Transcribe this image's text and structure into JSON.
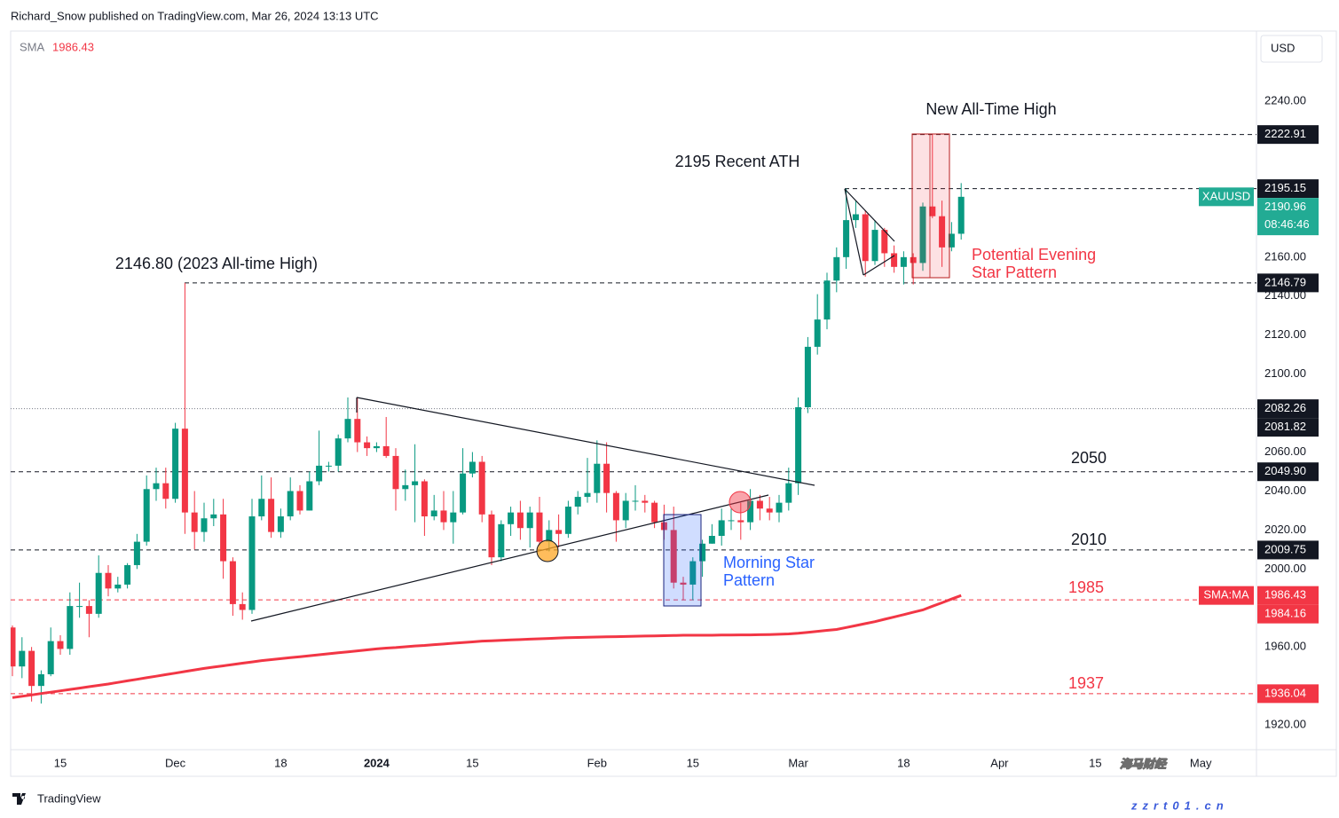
{
  "header": {
    "byline": "Richard_Snow published on TradingView.com, Mar 26, 2024 13:13 UTC",
    "currency": "USD",
    "brand": "TradingView",
    "watermark": "海马财经",
    "watermark_url": "zzrt01.cn"
  },
  "chart_data": {
    "type": "candlestick",
    "up_color": "#089981",
    "down_color": "#f23645",
    "categories": [
      null,
      null,
      null,
      null,
      null,
      "15",
      null,
      null,
      null,
      null,
      null,
      null,
      null,
      null,
      null,
      null,
      null,
      "Dec",
      null,
      null,
      null,
      null,
      null,
      null,
      null,
      null,
      null,
      null,
      "18",
      null,
      null,
      null,
      null,
      null,
      null,
      null,
      null,
      null,
      "2024",
      null,
      null,
      null,
      null,
      null,
      null,
      null,
      null,
      null,
      "15",
      null,
      null,
      null,
      null,
      null,
      null,
      null,
      null,
      null,
      null,
      null,
      null,
      "Feb",
      null,
      null,
      null,
      null,
      null,
      null,
      null,
      null,
      null,
      "15",
      null,
      null,
      null,
      null,
      null,
      null,
      null,
      null,
      null,
      null,
      "Mar",
      null,
      null,
      null,
      null,
      null,
      null,
      null,
      null,
      null,
      null,
      "18",
      null,
      null,
      null,
      null,
      null,
      null,
      null,
      null,
      null,
      "Apr",
      null,
      null,
      null,
      null,
      null,
      null,
      null,
      null,
      null,
      "15",
      null,
      null,
      null,
      null,
      null,
      null,
      null,
      null,
      null,
      null,
      "May"
    ],
    "open": [
      1970,
      1950,
      1958,
      1940,
      1946,
      1963,
      1959,
      1981,
      1981,
      1977,
      1998,
      1990,
      1992,
      2002,
      2014,
      2041,
      2044,
      2036,
      2072,
      2029,
      2019,
      2026,
      2028,
      2004,
      1982,
      1979,
      2027,
      2036,
      2019,
      2027,
      2040,
      2030,
      2045,
      2053,
      2053,
      2067,
      2077,
      2065,
      2062,
      2063,
      2058,
      2041,
      2043,
      2045,
      2027,
      2030,
      2024,
      2029,
      2049,
      2055,
      2028,
      2006,
      2023,
      2029,
      2021,
      2029,
      2014,
      2020,
      2018,
      2032,
      2037,
      2039,
      2054,
      2039,
      2025,
      2035,
      2035,
      2034,
      2024,
      2020,
      1993,
      1992,
      2004,
      2013,
      2017,
      2025,
      2025,
      2024,
      2035,
      2031,
      2029,
      2034,
      2044,
      2083,
      2114,
      2128,
      2148,
      2160,
      2179,
      2182,
      2158,
      2174,
      2162,
      2155,
      2160,
      2157,
      2186,
      2181,
      2165,
      2172,
      null,
      null,
      null,
      null,
      null,
      null,
      null,
      null,
      null,
      null,
      null,
      null,
      null,
      null,
      null,
      null,
      null,
      null,
      null,
      null,
      null,
      null,
      null,
      null,
      null
    ],
    "high": [
      1971,
      1965,
      1960,
      1948,
      1970,
      1966,
      1988,
      1993,
      1984,
      2007,
      2002,
      1996,
      2003,
      2018,
      2048,
      2052,
      2052,
      2075,
      2146.8,
      2040,
      2034,
      2036,
      2036,
      2006,
      1988,
      2036,
      2048,
      2047,
      2031,
      2047,
      2043,
      2050,
      2071,
      2055,
      2069,
      2088,
      2088,
      2068,
      2065,
      2078,
      2062,
      2051,
      2064,
      2046,
      2038,
      2040,
      2040,
      2062,
      2060,
      2058,
      2030,
      2025,
      2032,
      2035,
      2032,
      2037,
      2025,
      2028,
      2035,
      2040,
      2057,
      2066,
      2065,
      2040,
      2039,
      2043,
      2038,
      2035,
      2033,
      2032,
      1996,
      2006,
      2015,
      2023,
      2031,
      2031,
      2034,
      2041,
      2038,
      2037,
      2038,
      2052,
      2088,
      2119,
      2141,
      2152,
      2165,
      2195.15,
      2189,
      2184,
      2179,
      2175,
      2166,
      2163,
      2162,
      2188,
      2222.91,
      2189,
      2178,
      2198,
      null,
      null,
      null,
      null,
      null,
      null,
      null,
      null,
      null,
      null,
      null,
      null,
      null,
      null,
      null,
      null,
      null,
      null,
      null,
      null,
      null,
      null,
      null,
      null,
      null
    ],
    "low": [
      1945,
      1944,
      1932,
      1931,
      1945,
      1956,
      1956,
      1975,
      1965,
      1975,
      1986,
      1988,
      1990,
      2000,
      2012,
      2035,
      2031,
      2034,
      2018,
      2010,
      2014,
      2022,
      1995,
      1976,
      1974,
      1977,
      2025,
      2016,
      2016,
      2025,
      2028,
      2030,
      2043,
      2050,
      2050,
      2065,
      2060,
      2058,
      2060,
      2057,
      2030,
      2035,
      2024,
      2017,
      2025,
      2020,
      2013,
      2028,
      2047,
      2024,
      2002,
      2004,
      2017,
      2015,
      2011,
      2012,
      2009,
      2011,
      2016,
      2028,
      2034,
      2034,
      2029,
      2014,
      2021,
      2030,
      2029,
      2021,
      2015,
      1990,
      1984,
      1984,
      1996,
      2013,
      2012,
      2020,
      2015,
      2020,
      2025,
      2025,
      2024,
      2030,
      2038,
      2080,
      2110,
      2123,
      2142,
      2154,
      2175,
      2150,
      2156,
      2155,
      2152,
      2146,
      2146,
      2153,
      2180,
      2155,
      2163,
      2169,
      null,
      null,
      null,
      null,
      null,
      null,
      null,
      null,
      null,
      null,
      null,
      null,
      null,
      null,
      null,
      null,
      null,
      null,
      null,
      null,
      null,
      null,
      null,
      null,
      null
    ],
    "close": [
      1950,
      1958,
      1940,
      1946,
      1963,
      1959,
      1981,
      1981,
      1977,
      1998,
      1990,
      1992,
      2002,
      2014,
      2041,
      2044,
      2036,
      2072,
      2029,
      2019,
      2026,
      2028,
      2004,
      1982,
      1979,
      2027,
      2036,
      2019,
      2027,
      2040,
      2030,
      2045,
      2053,
      2053,
      2067,
      2077,
      2065,
      2062,
      2063,
      2058,
      2041,
      2043,
      2045,
      2027,
      2030,
      2024,
      2029,
      2049,
      2055,
      2028,
      2006,
      2023,
      2029,
      2021,
      2029,
      2014,
      2020,
      2018,
      2032,
      2037,
      2039,
      2054,
      2039,
      2025,
      2035,
      2035,
      2034,
      2024,
      2020,
      1993,
      1992,
      2004,
      2013,
      2017,
      2025,
      2025,
      2024,
      2035,
      2031,
      2029,
      2034,
      2044,
      2083,
      2114,
      2128,
      2148,
      2160,
      2179,
      2182,
      2158,
      2174,
      2162,
      2155,
      2160,
      2157,
      2186,
      2181,
      2165,
      2172,
      2190.96,
      null,
      null,
      null,
      null,
      null,
      null,
      null,
      null,
      null,
      null,
      null,
      null,
      null,
      null,
      null,
      null,
      null,
      null,
      null,
      null,
      null,
      null,
      null,
      null,
      null
    ],
    "sma": {
      "name": "SMA",
      "tag": "SMA:MA",
      "value": 1986.43,
      "color": "#f23645",
      "values": [
        1934,
        1934.7,
        1935.4,
        1936.1,
        1936.8,
        1937.5,
        1938.2,
        1938.9,
        1939.6,
        1940.3,
        1941,
        1941.8,
        1942.6,
        1943.4,
        1944.2,
        1945,
        1945.8,
        1946.6,
        1947.4,
        1948.2,
        1949,
        1949.7,
        1950.3,
        1951,
        1951.7,
        1952.3,
        1953,
        1953.5,
        1954,
        1954.5,
        1955,
        1955.5,
        1956,
        1956.5,
        1957,
        1957.5,
        1958,
        1958.5,
        1959,
        1959.4,
        1959.7,
        1960.1,
        1960.5,
        1960.8,
        1961.2,
        1961.5,
        1961.9,
        1962.3,
        1962.6,
        1963,
        1963.2,
        1963.4,
        1963.6,
        1963.8,
        1964,
        1964.2,
        1964.4,
        1964.6,
        1964.8,
        1964.9,
        1965,
        1965.1,
        1965.2,
        1965.3,
        1965.4,
        1965.5,
        1965.6,
        1965.7,
        1965.8,
        1965.9,
        1966,
        1966,
        1966,
        1966,
        1966.1,
        1966.1,
        1966.2,
        1966.2,
        1966.3,
        1966.4,
        1966.5,
        1966.7,
        1967,
        1967.5,
        1968,
        1968.5,
        1969,
        1970,
        1971,
        1972,
        1973,
        1974.2,
        1975.4,
        1976.6,
        1977.8,
        1979,
        1980.9,
        1982.7,
        1984.6,
        1986.43,
        null,
        null,
        null,
        null,
        null,
        null,
        null,
        null,
        null,
        null,
        null,
        null,
        null,
        null,
        null,
        null,
        null,
        null,
        null,
        null,
        null,
        null,
        null,
        null,
        null
      ]
    },
    "last_price": {
      "symbol": "XAUUSD",
      "value": 2190.96,
      "label": "2190.96",
      "countdown": "08:46:46",
      "color": "#22ab94"
    },
    "ylim": [
      1907.3,
      2276
    ],
    "yticks": [
      {
        "value": 2240,
        "label": "2240.00"
      },
      {
        "value": 2160,
        "label": "2160.00"
      },
      {
        "value": 2140,
        "label": "2140.00"
      },
      {
        "value": 2120,
        "label": "2120.00"
      },
      {
        "value": 2100,
        "label": "2100.00"
      },
      {
        "value": 2060,
        "label": "2060.00"
      },
      {
        "value": 2040,
        "label": "2040.00"
      },
      {
        "value": 2020,
        "label": "2020.00"
      },
      {
        "value": 2000,
        "label": "2000.00"
      },
      {
        "value": 1960,
        "label": "1960.00"
      },
      {
        "value": 1920,
        "label": "1920.00"
      }
    ],
    "levels": [
      {
        "value": 2222.91,
        "label": "2222.91",
        "color": "#131722",
        "line": "dashed"
      },
      {
        "value": 2195.15,
        "label": "2195.15",
        "color": "#131722",
        "line": "dashed"
      },
      {
        "value": 2146.79,
        "label": "2146.79",
        "color": "#131722",
        "line": "dashed"
      },
      {
        "value": 2082.26,
        "label": "2082.26",
        "color": "#131722",
        "line": "dotted"
      },
      {
        "value": 2081.82,
        "label": "2081.82",
        "color": "#131722",
        "line": "none"
      },
      {
        "value": 2049.9,
        "label": "2049.90",
        "color": "#131722",
        "line": "dashed"
      },
      {
        "value": 2009.75,
        "label": "2009.75",
        "color": "#131722",
        "line": "dashed"
      },
      {
        "value": 1984.16,
        "label": "1984.16",
        "color": "#f23645",
        "line": "dashed"
      },
      {
        "value": 1936.04,
        "label": "1936.04",
        "color": "#f23645",
        "line": "dashed"
      }
    ],
    "annotations": {
      "new_ath": "New All-Time High",
      "recent_ath": "2195 Recent ATH",
      "ath_2023": "2146.80 (2023 All-time High)",
      "lvl_2050": "2050",
      "lvl_2010": "2010",
      "lvl_1985": "1985",
      "lvl_1937": "1937",
      "evening_star": [
        "Potential Evening",
        "Star Pattern"
      ],
      "morning_star": [
        "Morning Star",
        "Pattern"
      ]
    }
  }
}
